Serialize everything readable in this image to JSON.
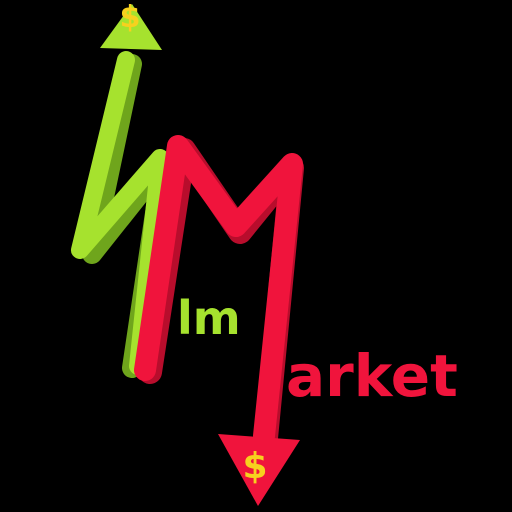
{
  "logo": {
    "word_green": "lm",
    "word_red": "arket",
    "dollar_top": "$",
    "dollar_bottom": "$",
    "colors": {
      "background": "#000000",
      "green": "#a6e22e",
      "green_dark": "#6fa51c",
      "red": "#f0143c",
      "red_dark": "#b80d2c",
      "dollar": "#f7d11e"
    },
    "icons": [
      "up-arrow-icon",
      "down-arrow-icon",
      "dollar-icon",
      "dollar-icon"
    ]
  }
}
